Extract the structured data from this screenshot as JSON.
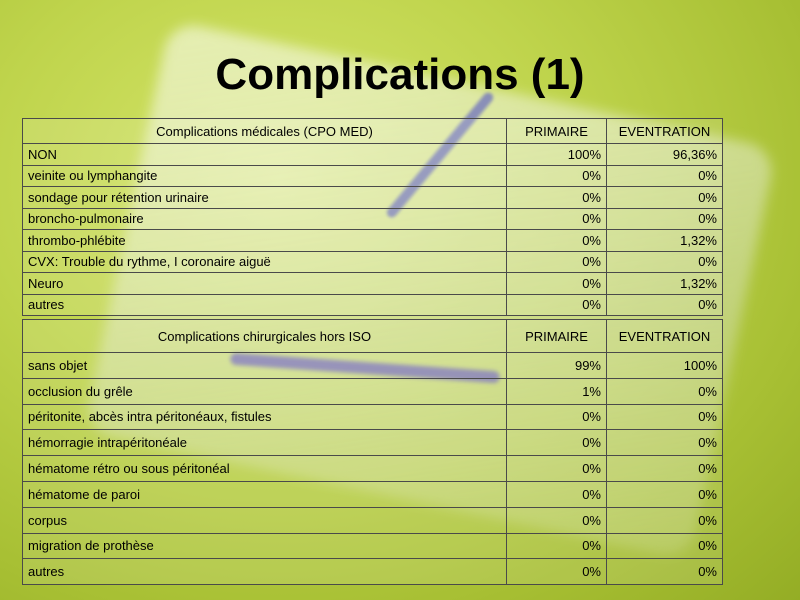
{
  "title": "Complications (1)",
  "table1": {
    "headers": [
      "Complications médicales (CPO MED)",
      "PRIMAIRE",
      "EVENTRATION"
    ],
    "rows": [
      [
        "NON",
        "100%",
        "96,36%"
      ],
      [
        "veinite ou lymphangite",
        "0%",
        "0%"
      ],
      [
        "sondage pour rétention urinaire",
        "0%",
        "0%"
      ],
      [
        "broncho-pulmonaire",
        "0%",
        "0%"
      ],
      [
        "thrombo-phlébite",
        "0%",
        "1,32%"
      ],
      [
        "CVX: Trouble du rythme, I coronaire aiguë",
        "0%",
        "0%"
      ],
      [
        "Neuro",
        "0%",
        "1,32%"
      ],
      [
        "autres",
        "0%",
        "0%"
      ]
    ]
  },
  "table2": {
    "headers": [
      "Complications chirurgicales hors ISO",
      "PRIMAIRE",
      "EVENTRATION"
    ],
    "rows": [
      [
        "sans objet",
        "99%",
        "100%"
      ],
      [
        " occlusion du grêle",
        "1%",
        "0%"
      ],
      [
        "péritonite, abcès intra péritonéaux, fistules",
        "0%",
        "0%"
      ],
      [
        "hémorragie intrapéritonéale",
        "0%",
        "0%"
      ],
      [
        "hématome rétro ou sous péritonéal",
        "0%",
        "0%"
      ],
      [
        "hématome de paroi",
        "0%",
        "0%"
      ],
      [
        "corpus",
        "0%",
        "0%"
      ],
      [
        "migration de prothèse",
        "0%",
        "0%"
      ],
      [
        "autres",
        "0%",
        "0%"
      ]
    ]
  }
}
